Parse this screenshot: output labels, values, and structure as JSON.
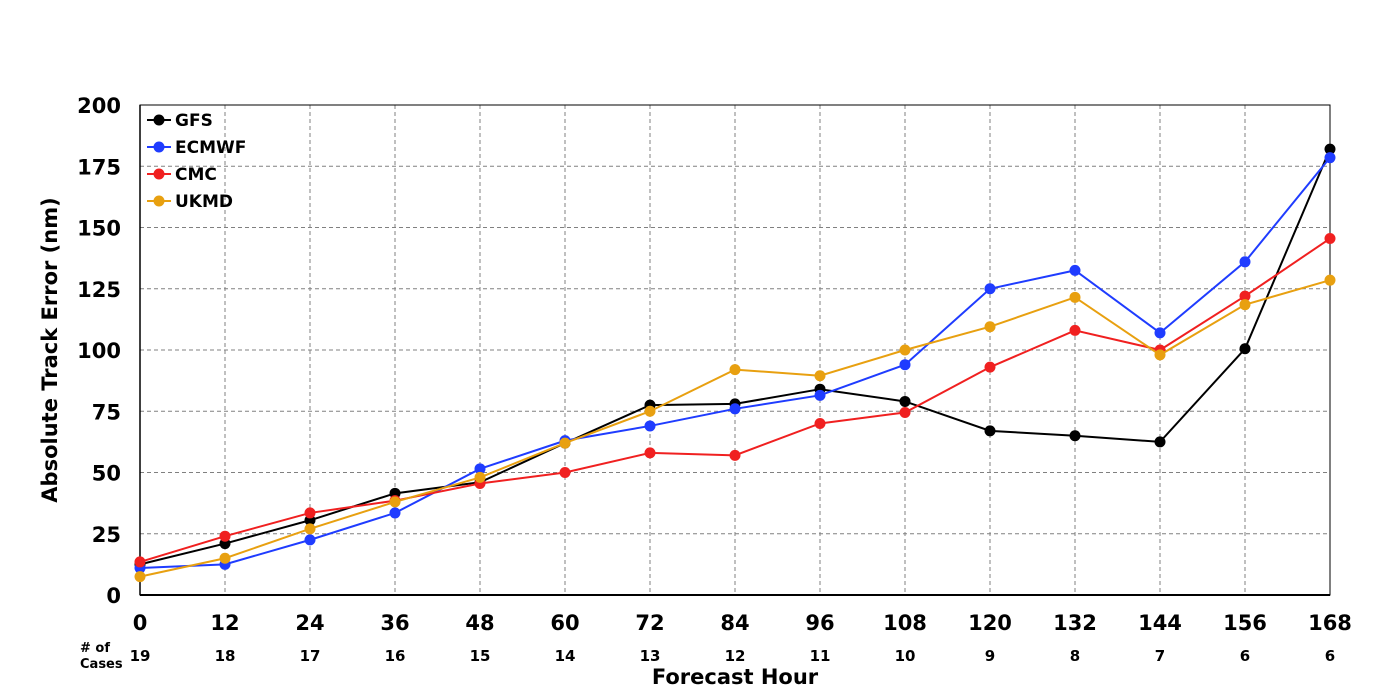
{
  "chart_data": {
    "type": "line",
    "title": "",
    "xlabel": "Forecast Hour",
    "ylabel": "Absolute Track Error (nm)",
    "cases_label_line1": "# of",
    "cases_label_line2": "Cases",
    "x": [
      0,
      12,
      24,
      36,
      48,
      60,
      72,
      84,
      96,
      108,
      120,
      132,
      144,
      156,
      168
    ],
    "x_tick_labels": [
      "0",
      "12",
      "24",
      "36",
      "48",
      "60",
      "72",
      "84",
      "96",
      "108",
      "120",
      "132",
      "144",
      "156",
      "168"
    ],
    "cases": [
      "19",
      "18",
      "17",
      "16",
      "15",
      "14",
      "13",
      "12",
      "11",
      "10",
      "9",
      "8",
      "7",
      "6",
      "6"
    ],
    "xlim": [
      0,
      168
    ],
    "ylim": [
      0,
      200
    ],
    "y_ticks": [
      0,
      25,
      50,
      75,
      100,
      125,
      150,
      175,
      200
    ],
    "y_tick_labels": [
      "0",
      "25",
      "50",
      "75",
      "100",
      "125",
      "150",
      "175",
      "200"
    ],
    "grid": true,
    "grid_style": "dashed",
    "legend_position": "top-left",
    "series": [
      {
        "name": "GFS",
        "color": "#000000",
        "values": [
          12.5,
          21,
          30.5,
          41.5,
          46,
          62,
          77.5,
          78,
          84,
          79,
          67,
          65,
          62.5,
          100.5,
          182
        ]
      },
      {
        "name": "ECMWF",
        "color": "#1f3cff",
        "values": [
          11,
          12.5,
          22.5,
          33.5,
          51.5,
          63,
          69,
          76,
          81.5,
          94,
          125,
          132.5,
          107,
          136,
          178.5
        ]
      },
      {
        "name": "CMC",
        "color": "#f02020",
        "values": [
          13.5,
          24,
          33.5,
          38.5,
          45.5,
          50,
          58,
          57,
          70,
          74.5,
          93,
          108,
          100,
          122,
          145.5
        ]
      },
      {
        "name": "UKMD",
        "color": "#e8a010",
        "values": [
          7.5,
          15,
          27,
          38,
          48,
          62,
          75,
          92,
          89.5,
          100,
          109.5,
          121.5,
          98,
          118.5,
          128.5
        ]
      }
    ]
  }
}
